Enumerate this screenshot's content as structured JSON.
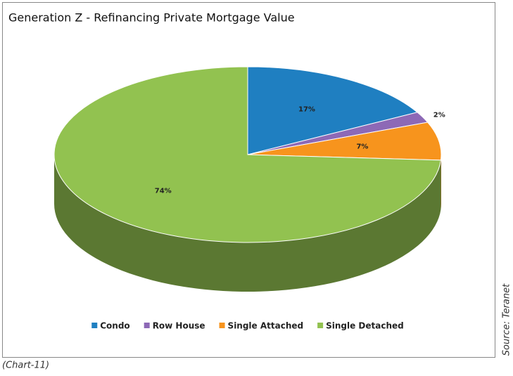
{
  "chart_data": {
    "type": "pie3d",
    "title": "Generation Z - Refinancing Private Mortgage Value",
    "categories": [
      "Condo",
      "Row House",
      "Single Attached",
      "Single Detached"
    ],
    "values": [
      17,
      2,
      7,
      74
    ],
    "value_labels": [
      "17%",
      "2%",
      "7%",
      "74%"
    ],
    "colors": [
      "#1f7fc1",
      "#8d69b6",
      "#f7941d",
      "#92c250"
    ],
    "legend": "bottom",
    "source": "Source: Teranet",
    "caption": "(Chart-11)"
  }
}
